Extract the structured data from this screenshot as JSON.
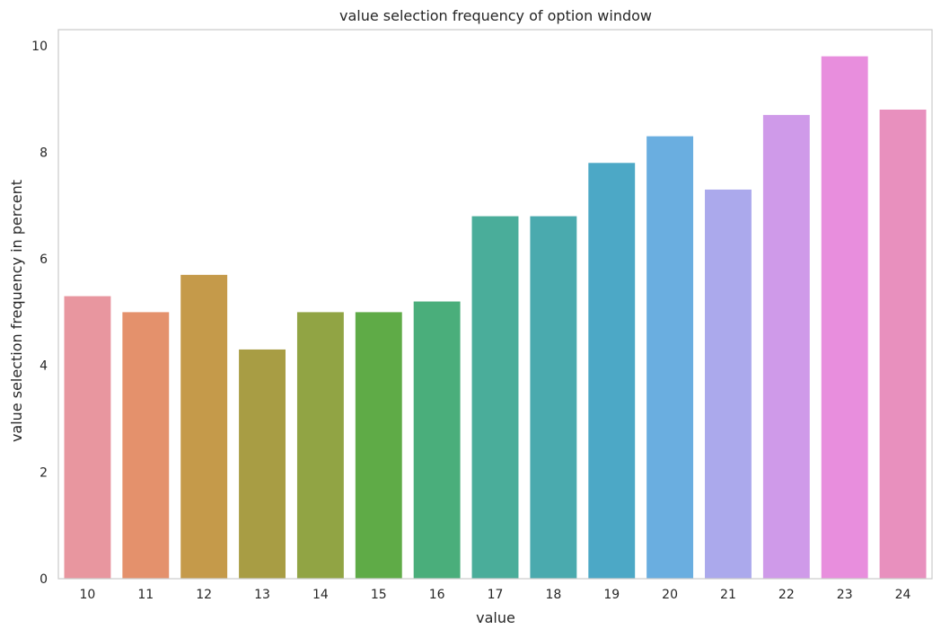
{
  "chart_data": {
    "type": "bar",
    "title": "value selection frequency of option window",
    "xlabel": "value",
    "ylabel": "value selection frequency in percent",
    "categories": [
      "10",
      "11",
      "12",
      "13",
      "14",
      "15",
      "16",
      "17",
      "18",
      "19",
      "20",
      "21",
      "22",
      "23",
      "24"
    ],
    "values": [
      5.3,
      5.0,
      5.7,
      4.3,
      5.0,
      5.0,
      5.2,
      6.8,
      6.8,
      7.8,
      8.3,
      7.3,
      8.7,
      9.8,
      8.8
    ],
    "colors": [
      "#e8969f",
      "#e4916c",
      "#c59a4a",
      "#a89d44",
      "#91a444",
      "#5fab47",
      "#4aae7b",
      "#4aad9a",
      "#4aaaae",
      "#4ca8c6",
      "#6aaee0",
      "#aba9ec",
      "#cf9ae9",
      "#e88edd",
      "#e890be"
    ],
    "ylim": [
      0,
      10.3
    ],
    "yticks": [
      0,
      2,
      4,
      6,
      8,
      10
    ],
    "grid": false
  }
}
